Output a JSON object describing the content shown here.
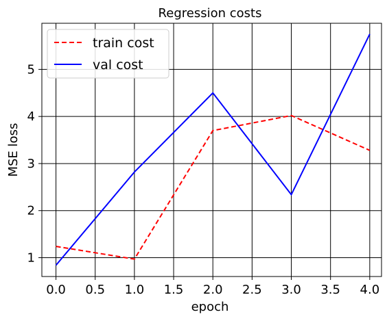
{
  "chart_data": {
    "type": "line",
    "title": "Regression costs",
    "xlabel": "epoch",
    "ylabel": "MSE loss",
    "x": [
      0,
      1,
      2,
      3,
      4
    ],
    "xlim": [
      -0.18,
      4.15
    ],
    "ylim": [
      0.6,
      5.98
    ],
    "xticks": [
      "0.0",
      "0.5",
      "1.0",
      "1.5",
      "2.0",
      "2.5",
      "3.0",
      "3.5",
      "4.0"
    ],
    "yticks": [
      "1",
      "2",
      "3",
      "4",
      "5"
    ],
    "grid": true,
    "legend_position": "top-left",
    "series": [
      {
        "name": "train cost",
        "values": [
          1.24,
          0.97,
          3.7,
          4.02,
          3.28
        ],
        "color": "#ff0000",
        "style": "dashed"
      },
      {
        "name": "val cost",
        "values": [
          0.84,
          2.82,
          4.5,
          2.34,
          5.75
        ],
        "color": "#0000ff",
        "style": "solid"
      }
    ]
  }
}
